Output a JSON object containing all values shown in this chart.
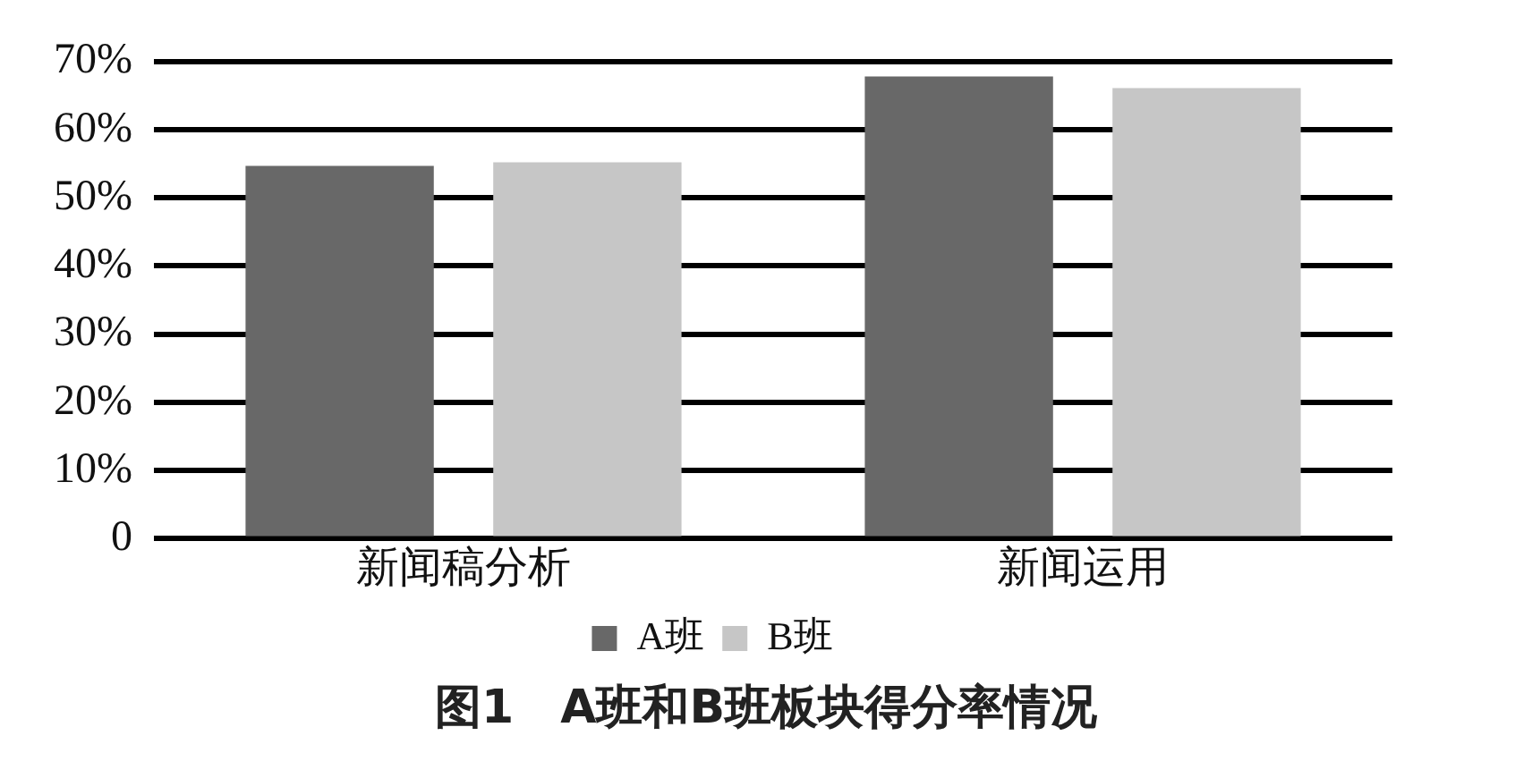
{
  "chart_data": {
    "type": "bar",
    "title": "图1　A班和B班板块得分率情况",
    "categories": [
      "新闻稿分析",
      "新闻运用"
    ],
    "series": [
      {
        "name": "A班",
        "color": "#686868",
        "values": [
          54.7,
          67.8
        ]
      },
      {
        "name": "B班",
        "color": "#c6c6c6",
        "values": [
          55.2,
          66.1
        ]
      }
    ],
    "ylim": [
      0,
      70
    ],
    "yticks": [
      {
        "value": 0,
        "label": "0"
      },
      {
        "value": 10,
        "label": "10%"
      },
      {
        "value": 20,
        "label": "20%"
      },
      {
        "value": 30,
        "label": "30%"
      },
      {
        "value": 40,
        "label": "40%"
      },
      {
        "value": 50,
        "label": "50%"
      },
      {
        "value": 60,
        "label": "60%"
      },
      {
        "value": 70,
        "label": "70%"
      }
    ],
    "grid": "y",
    "legend": "bottom"
  }
}
